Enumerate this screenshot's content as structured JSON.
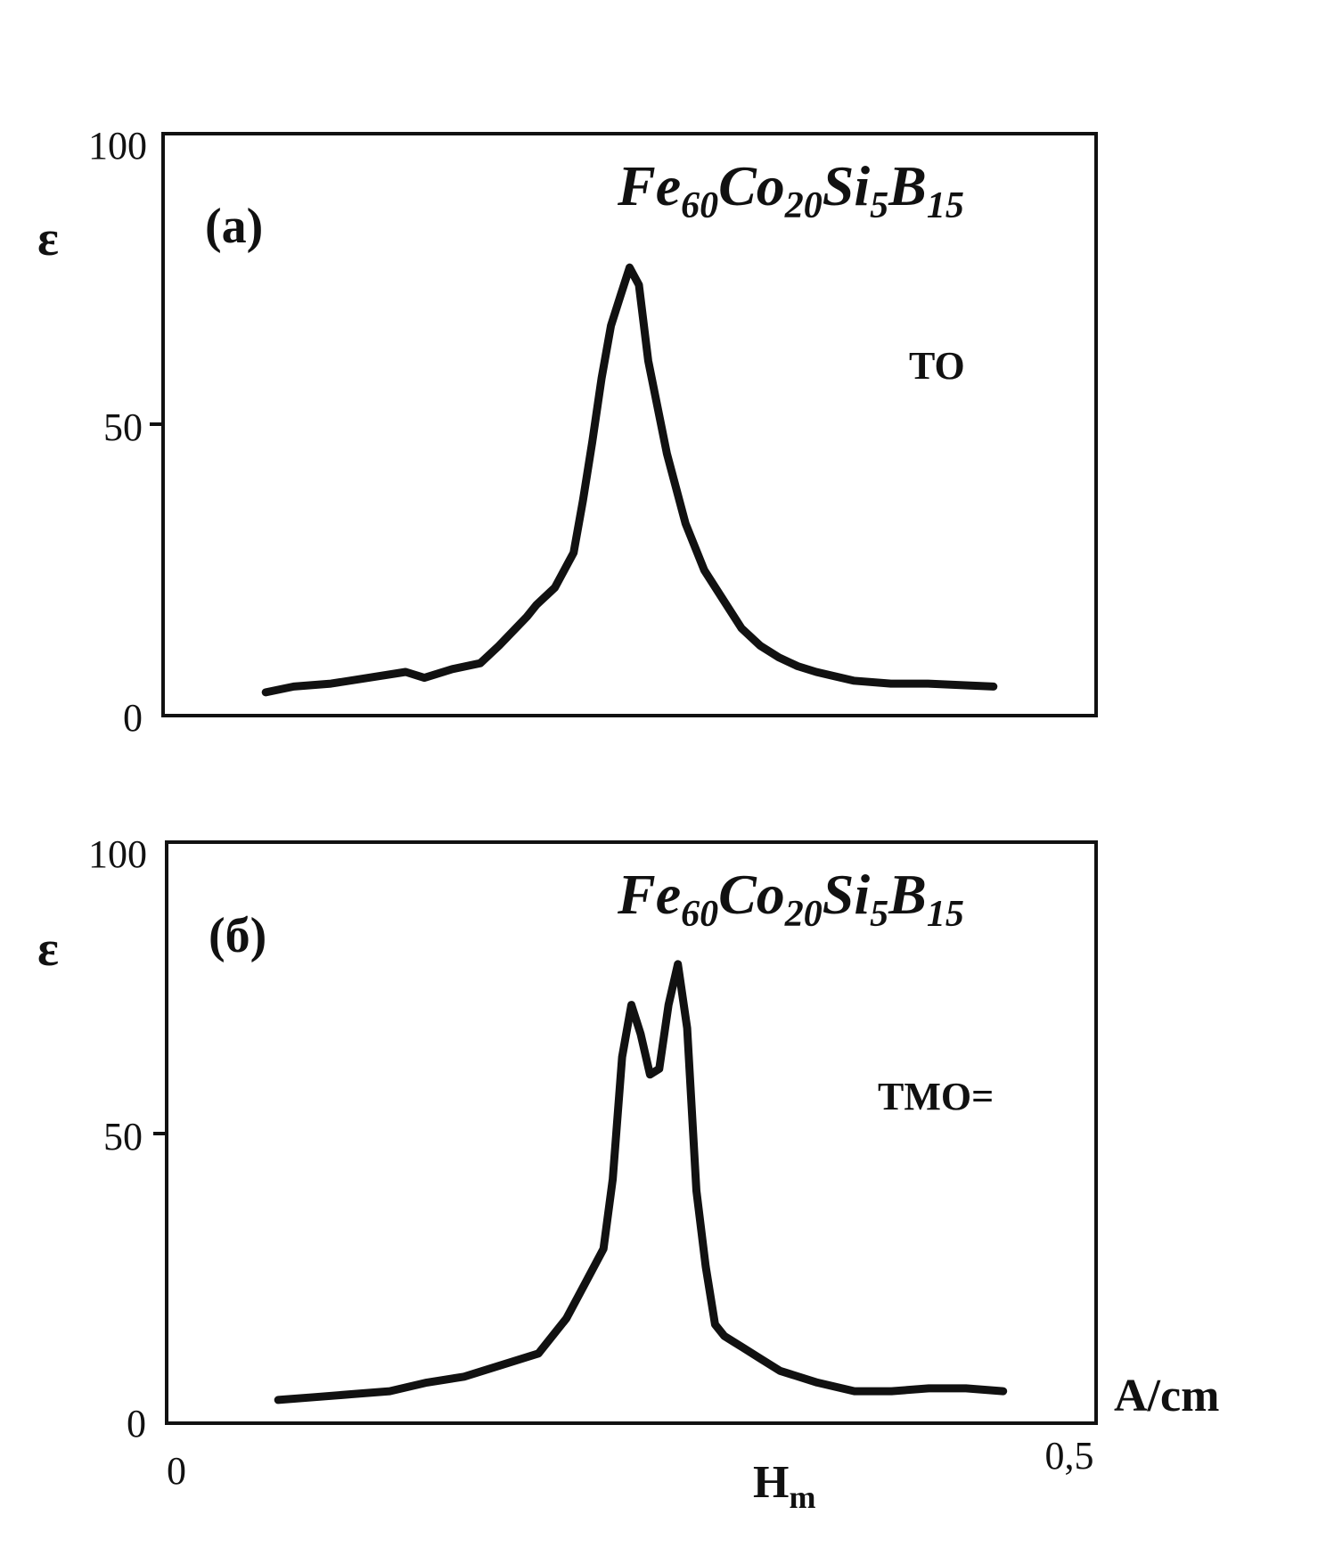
{
  "chart_data": [
    {
      "type": "line",
      "panel_label": "(a)",
      "formula": {
        "parts": [
          [
            "Fe",
            "60"
          ],
          [
            "Co",
            "20"
          ],
          [
            "Si",
            "5"
          ],
          [
            "B",
            "15"
          ]
        ]
      },
      "condition": "TO",
      "ylabel": "ε",
      "ylim": [
        0,
        100
      ],
      "yticks": [
        "0",
        "50",
        "100"
      ],
      "xlim": [
        0,
        0.5
      ],
      "series": [
        {
          "x": [
            0.055,
            0.07,
            0.09,
            0.11,
            0.13,
            0.14,
            0.155,
            0.17,
            0.18,
            0.195,
            0.2,
            0.21,
            0.22,
            0.225,
            0.23,
            0.235,
            0.24,
            0.245,
            0.25,
            0.255,
            0.26,
            0.27,
            0.28,
            0.29,
            0.3,
            0.31,
            0.32,
            0.33,
            0.34,
            0.35,
            0.37,
            0.39,
            0.41,
            0.43,
            0.445
          ],
          "y": [
            4,
            5,
            5.5,
            6.5,
            7.5,
            6.5,
            8,
            9,
            12,
            17,
            19,
            22,
            28,
            37,
            47,
            58,
            67,
            72,
            77,
            74,
            61,
            45,
            33,
            25,
            20,
            15,
            12,
            10,
            8.5,
            7.5,
            6,
            5.5,
            5.5,
            5.2,
            5
          ]
        }
      ]
    },
    {
      "type": "line",
      "panel_label": "(б)",
      "formula": {
        "parts": [
          [
            "Fe",
            "60"
          ],
          [
            "Co",
            "20"
          ],
          [
            "Si",
            "5"
          ],
          [
            "B",
            "15"
          ]
        ]
      },
      "condition": "TMO=",
      "ylabel": "ε",
      "ylim": [
        0,
        100
      ],
      "yticks": [
        "0",
        "50",
        "100"
      ],
      "xlim": [
        0,
        0.5
      ],
      "xticks": [
        "0",
        "0,5"
      ],
      "xunits": "A/cm",
      "xlabel": {
        "main": "H",
        "sub": "m"
      },
      "series": [
        {
          "x": [
            0.06,
            0.08,
            0.1,
            0.12,
            0.14,
            0.16,
            0.18,
            0.2,
            0.215,
            0.225,
            0.235,
            0.24,
            0.245,
            0.25,
            0.255,
            0.26,
            0.265,
            0.27,
            0.275,
            0.28,
            0.285,
            0.29,
            0.295,
            0.3,
            0.305,
            0.31,
            0.32,
            0.33,
            0.35,
            0.37,
            0.39,
            0.41,
            0.43,
            0.45
          ],
          "y": [
            4,
            4.5,
            5,
            5.5,
            7,
            8,
            10,
            12,
            18,
            24,
            30,
            42,
            63,
            72,
            67,
            60,
            61,
            72,
            79,
            68,
            40,
            27,
            17,
            15,
            14,
            13,
            11,
            9,
            7,
            5.5,
            5.5,
            6,
            6,
            5.5
          ]
        }
      ]
    }
  ]
}
